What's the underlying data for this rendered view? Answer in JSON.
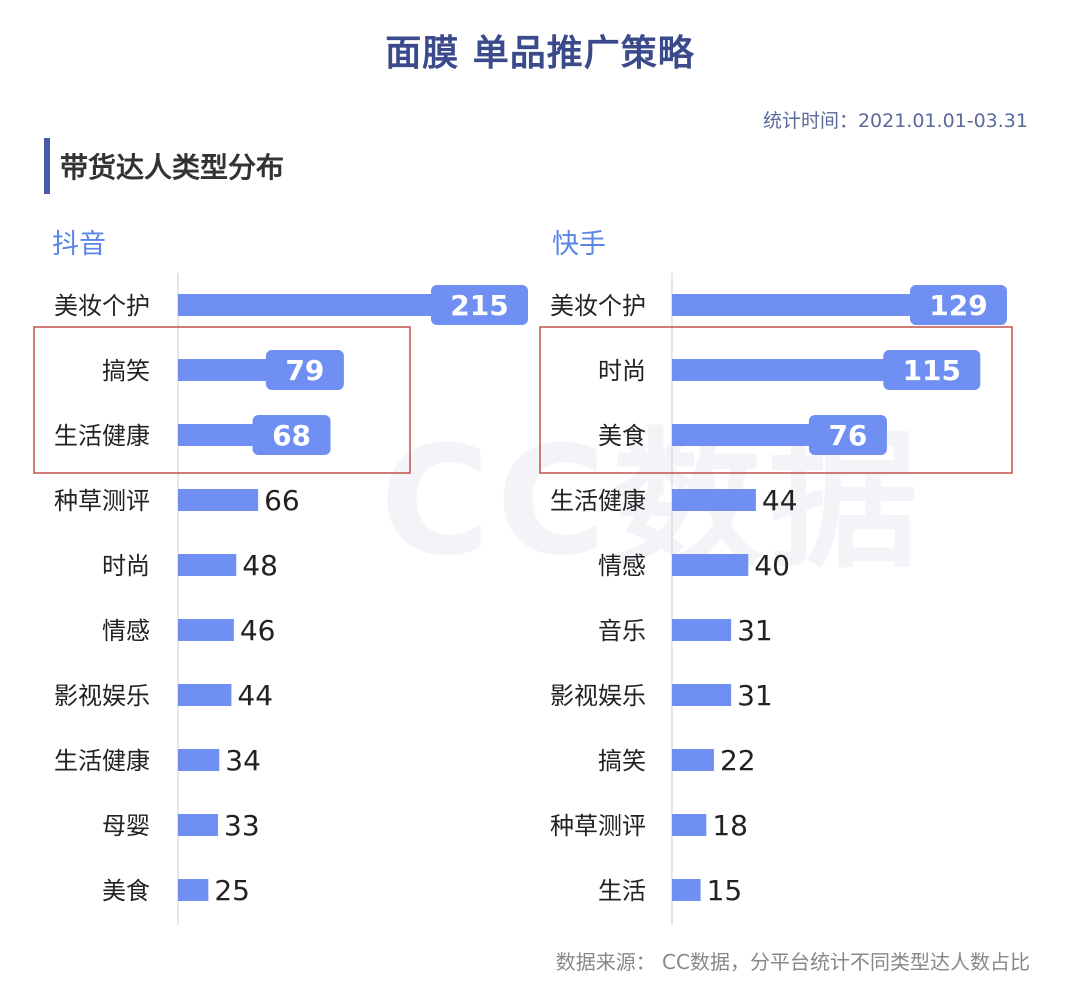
{
  "title": "面膜 单品推广策略",
  "stat_time": "统计时间：2021.01.01-03.31",
  "section_title": "带货达人类型分布",
  "watermark": "CC数据",
  "source": "数据来源： CC数据，分平台统计不同类型达人数占比",
  "colors": {
    "bar": "#6f8ff2",
    "highlight_box": "#c0504d",
    "accent": "#4a5ba6"
  },
  "chart_data": [
    {
      "type": "bar",
      "orientation": "horizontal",
      "title": "抖音",
      "categories": [
        "美妆个护",
        "搞笑",
        "生活健康",
        "种草测评",
        "时尚",
        "情感",
        "影视娱乐",
        "生活健康",
        "母婴",
        "美食"
      ],
      "values": [
        215,
        79,
        68,
        66,
        48,
        46,
        44,
        34,
        33,
        25
      ],
      "label_badge": [
        true,
        true,
        true,
        false,
        false,
        false,
        false,
        false,
        false,
        false
      ],
      "highlighted": [
        "搞笑",
        "生活健康"
      ]
    },
    {
      "type": "bar",
      "orientation": "horizontal",
      "title": "快手",
      "categories": [
        "美妆个护",
        "时尚",
        "美食",
        "生活健康",
        "情感",
        "音乐",
        "影视娱乐",
        "搞笑",
        "种草测评",
        "生活"
      ],
      "values": [
        129,
        115,
        76,
        44,
        40,
        31,
        31,
        22,
        18,
        15
      ],
      "label_badge": [
        true,
        true,
        true,
        false,
        false,
        false,
        false,
        false,
        false,
        false
      ],
      "highlighted": [
        "时尚",
        "美食"
      ]
    }
  ]
}
